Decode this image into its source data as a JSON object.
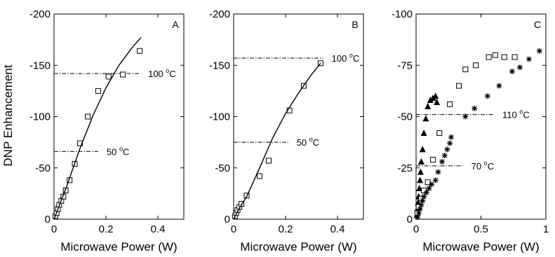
{
  "figure": {
    "ylabel": "DNP Enhancement"
  },
  "chart_data": [
    {
      "type": "scatter",
      "panel": "A",
      "xlabel": "Microwave Power (W)",
      "xlim": [
        0,
        0.5
      ],
      "ylim": [
        0,
        -200
      ],
      "xticks": [
        0,
        0.2,
        0.4
      ],
      "yticks": [
        0,
        -50,
        -100,
        -150,
        -200
      ],
      "xtick_labels": [
        "0",
        "0.2",
        "0.4"
      ],
      "ytick_labels": [
        "0",
        "-50",
        "-100",
        "-150",
        "-200"
      ],
      "series": [
        {
          "marker": "open-square",
          "x": [
            0.005,
            0.01,
            0.015,
            0.02,
            0.028,
            0.036,
            0.045,
            0.06,
            0.08,
            0.1,
            0.13,
            0.17,
            0.21,
            0.265,
            0.33
          ],
          "y": [
            -3,
            -6,
            -10,
            -14,
            -18,
            -22,
            -28,
            -38,
            -54,
            -74,
            -100,
            -125,
            -139,
            -141,
            -164
          ]
        },
        {
          "line": "solid",
          "x": [
            0,
            0.05,
            0.1,
            0.15,
            0.2,
            0.25,
            0.3,
            0.335
          ],
          "y": [
            0,
            -33,
            -69,
            -101,
            -128,
            -150,
            -167,
            -177
          ]
        }
      ],
      "reference_lines": [
        {
          "y": -142,
          "x_from": 0,
          "x_to": 0.33,
          "label": "100",
          "unit": "C"
        },
        {
          "y": -66,
          "x_from": 0,
          "x_to": 0.17,
          "label": "50",
          "unit": "C"
        }
      ]
    },
    {
      "type": "scatter",
      "panel": "B",
      "xlabel": "Microwave Power (W)",
      "xlim": [
        0,
        0.5
      ],
      "ylim": [
        0,
        -200
      ],
      "xticks": [
        0,
        0.2,
        0.4
      ],
      "yticks": [
        0,
        -50,
        -100,
        -150,
        -200
      ],
      "xtick_labels": [
        "0",
        "0.2",
        "0.4"
      ],
      "ytick_labels": [
        "0",
        "-50",
        "-100",
        "-150",
        "-200"
      ],
      "series": [
        {
          "marker": "open-square",
          "x": [
            0.005,
            0.01,
            0.015,
            0.022,
            0.03,
            0.05,
            0.1,
            0.135,
            0.215,
            0.27,
            0.335
          ],
          "y": [
            -3,
            -6,
            -9,
            -12,
            -15,
            -23,
            -42,
            -57,
            -106,
            -130,
            -152
          ]
        },
        {
          "line": "solid",
          "x": [
            0,
            0.02,
            0.05,
            0.1,
            0.15,
            0.2,
            0.25,
            0.3,
            0.335
          ],
          "y": [
            0,
            -10,
            -22,
            -50,
            -79,
            -103,
            -123,
            -141,
            -152
          ]
        }
      ],
      "reference_lines": [
        {
          "y": -157,
          "x_from": 0,
          "x_to": 0.345,
          "label": "100",
          "unit": "C"
        },
        {
          "y": -75,
          "x_from": 0,
          "x_to": 0.21,
          "label": "50",
          "unit": "C"
        }
      ]
    },
    {
      "type": "scatter",
      "panel": "C",
      "xlabel": "Microwave Power (W)",
      "xlim": [
        0,
        1
      ],
      "ylim": [
        0,
        -100
      ],
      "xticks": [
        0,
        0.5,
        1
      ],
      "yticks": [
        0,
        -25,
        -50,
        -75,
        -100
      ],
      "xtick_labels": [
        "0",
        "0.5",
        "1"
      ],
      "ytick_labels": [
        "0",
        "-25",
        "-50",
        "-75",
        "-100"
      ],
      "series": [
        {
          "marker": "filled-triangle",
          "x": [
            0.005,
            0.01,
            0.015,
            0.02,
            0.025,
            0.03,
            0.035,
            0.04,
            0.05,
            0.06,
            0.075,
            0.09,
            0.11,
            0.13,
            0.15,
            0.16
          ],
          "y": [
            -2,
            -5,
            -8,
            -11,
            -15,
            -19,
            -23,
            -28,
            -34,
            -42,
            -49,
            -55,
            -58,
            -59,
            -60,
            -57
          ]
        },
        {
          "marker": "open-square",
          "x": [
            0.01,
            0.02,
            0.04,
            0.06,
            0.09,
            0.13,
            0.18,
            0.26,
            0.33,
            0.38,
            0.46,
            0.56,
            0.61,
            0.68,
            0.76
          ],
          "y": [
            -3,
            -6,
            -10,
            -14,
            -18,
            -29,
            -42,
            -56,
            -65,
            -73,
            -75,
            -79,
            -80,
            -79,
            -79
          ]
        },
        {
          "marker": "asterisk",
          "x": [
            0.01,
            0.02,
            0.03,
            0.04,
            0.05,
            0.06,
            0.08,
            0.1,
            0.12,
            0.15,
            0.17,
            0.2,
            0.22,
            0.24,
            0.26,
            0.27,
            0.38,
            0.45,
            0.55,
            0.64,
            0.74,
            0.8,
            0.87,
            0.95
          ],
          "y": [
            -1,
            -3,
            -5,
            -7,
            -9,
            -11,
            -13,
            -15,
            -17,
            -19,
            -23,
            -28,
            -31,
            -34,
            -37,
            -40,
            -50,
            -54,
            -60,
            -65,
            -72,
            -74,
            -78,
            -82
          ]
        }
      ],
      "reference_lines": [
        {
          "y": -51,
          "x_from": 0,
          "x_to": 0.6,
          "label": "110",
          "unit": "C"
        },
        {
          "y": -26,
          "x_from": 0,
          "x_to": 0.36,
          "label": "70",
          "unit": "C"
        }
      ]
    }
  ]
}
